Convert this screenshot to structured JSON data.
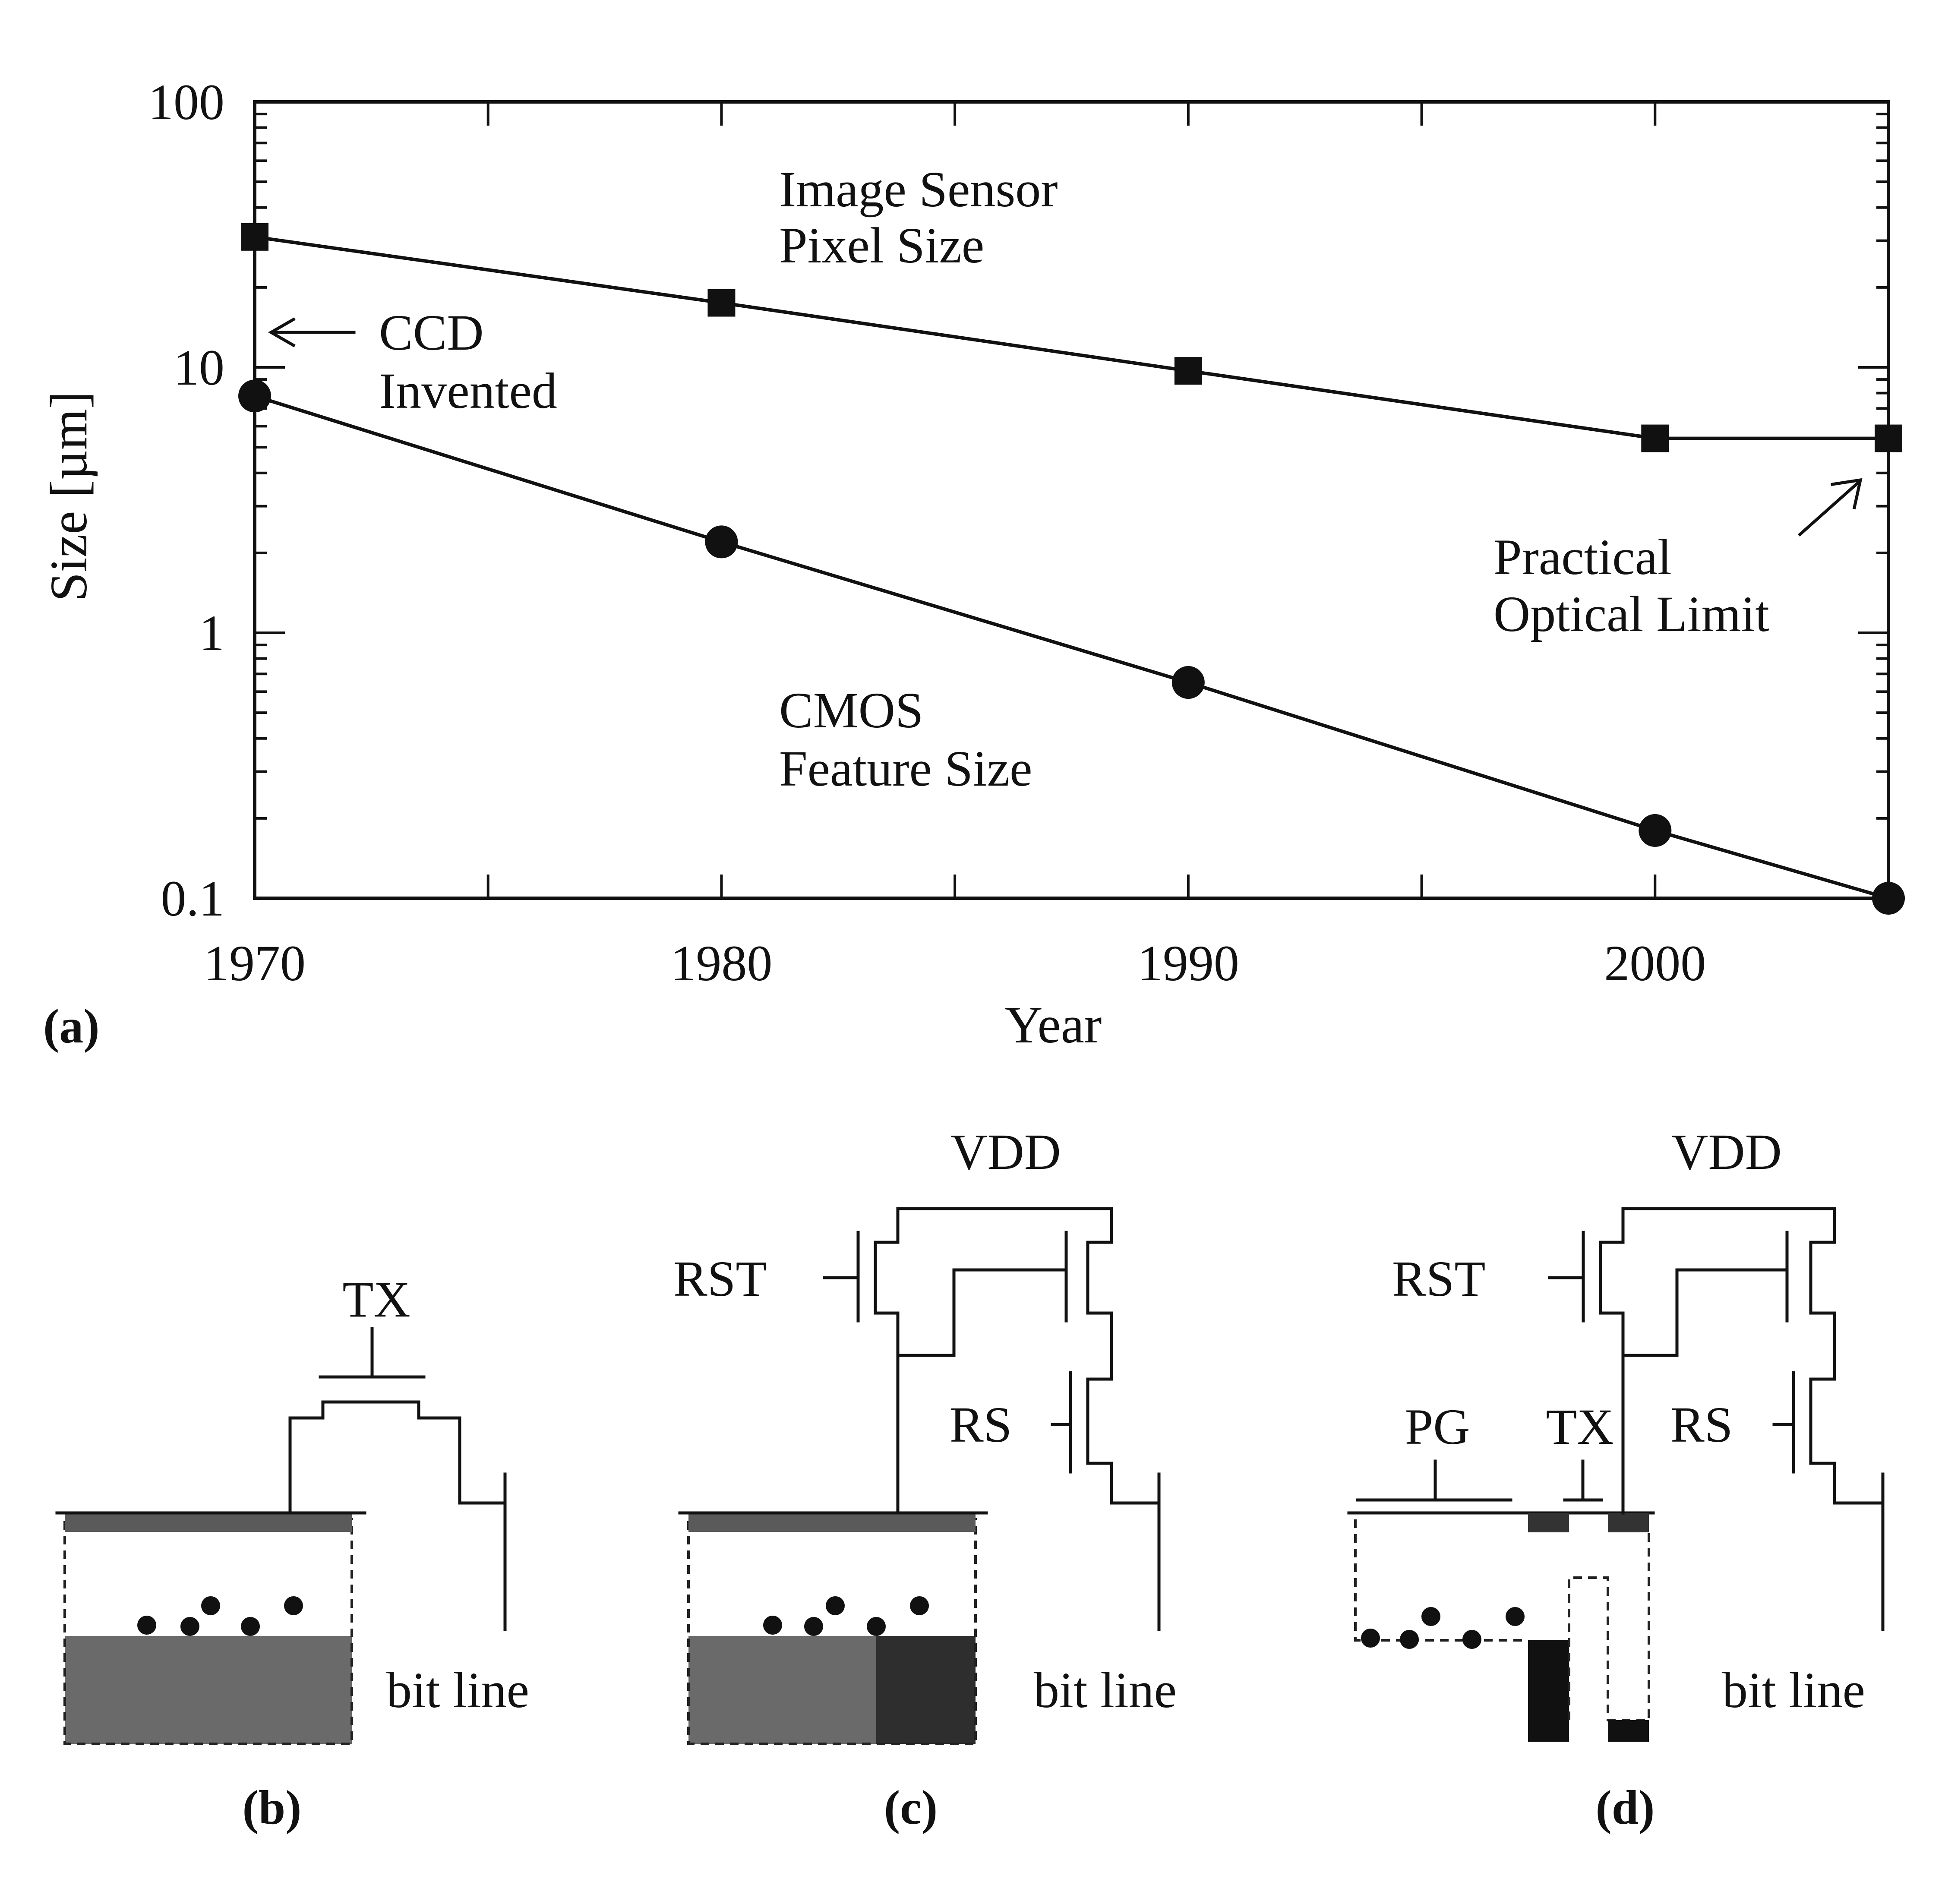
{
  "chart_data": {
    "type": "line",
    "xlabel": "Year",
    "ylabel": "Size [µm]",
    "yscale": "log",
    "xlim": [
      1970,
      2005
    ],
    "ylim": [
      0.1,
      100
    ],
    "x_ticks": [
      "1970",
      "1980",
      "1990",
      "2000"
    ],
    "y_ticks": [
      "100",
      "10",
      "1",
      "0.1"
    ],
    "grid": false,
    "series": [
      {
        "name": "Image Sensor Pixel Size",
        "marker": "square",
        "x": [
          1970,
          1980,
          1990,
          2000,
          2005
        ],
        "y": [
          31,
          17.5,
          9.7,
          5.4,
          5.4
        ]
      },
      {
        "name": "CMOS Feature Size",
        "marker": "circle",
        "x": [
          1970,
          1980,
          1990,
          2000,
          2005
        ],
        "y": [
          7.8,
          2.2,
          0.65,
          0.18,
          0.1
        ]
      }
    ],
    "series_label_lines": [
      [
        "Image Sensor",
        "Pixel Size"
      ],
      [
        "CMOS",
        "Feature Size"
      ]
    ],
    "annotations": {
      "ccd_lines": [
        "CCD",
        "Invented"
      ],
      "limit_lines": [
        "Practical",
        "Optical Limit"
      ]
    }
  },
  "panels": {
    "a": "(a)",
    "b": "(b)",
    "c": "(c)",
    "d": "(d)"
  },
  "circuits": {
    "tx": "TX",
    "vdd": "VDD",
    "rst": "RST",
    "rs": "RS",
    "pg": "PG",
    "bit_line": "bit line"
  }
}
